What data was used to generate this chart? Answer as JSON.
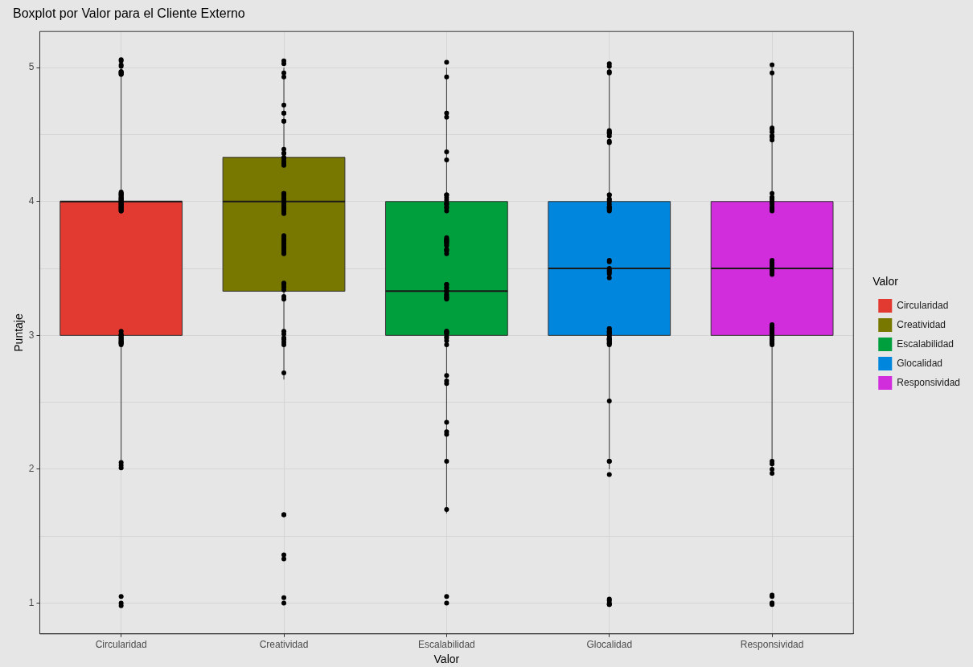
{
  "chart_data": {
    "type": "box",
    "title": "Boxplot por Valor para el Cliente Externo",
    "xlabel": "Valor",
    "ylabel": "Puntaje",
    "legend_title": "Valor",
    "legend": "right",
    "grid": true,
    "categories": [
      "Circularidad",
      "Creatividad",
      "Escalabilidad",
      "Glocalidad",
      "Responsividad"
    ],
    "series": [
      {
        "type": "box",
        "name": "Circularidad",
        "color": "#e23a30",
        "boxes": [
          {
            "low": 2,
            "q1": 3,
            "median": 4,
            "q3": 4,
            "high": 5
          },
          null,
          null,
          null,
          null
        ]
      },
      {
        "type": "box",
        "name": "Creatividad",
        "color": "#787800",
        "boxes": [
          null,
          {
            "low": 2.67,
            "q1": 3.33,
            "median": 4,
            "q3": 4.33,
            "high": 5
          },
          null,
          null,
          null
        ]
      },
      {
        "type": "box",
        "name": "Escalabilidad",
        "color": "#009f3d",
        "boxes": [
          null,
          null,
          {
            "low": 1.67,
            "q1": 3,
            "median": 3.33,
            "q3": 4,
            "high": 5
          },
          null,
          null
        ]
      },
      {
        "type": "box",
        "name": "Glocalidad",
        "color": "#0086dd",
        "boxes": [
          null,
          null,
          null,
          {
            "low": 2,
            "q1": 3,
            "median": 3.5,
            "q3": 4,
            "high": 5
          },
          null
        ]
      },
      {
        "type": "box",
        "name": "Responsividad",
        "color": "#d22ddd",
        "boxes": [
          null,
          null,
          null,
          null,
          {
            "low": 2,
            "q1": 3,
            "median": 3.5,
            "q3": 4,
            "high": 5
          }
        ]
      },
      {
        "type": "scatter",
        "color": "#000000",
        "x": [
          "Circularidad",
          "Circularidad",
          "Circularidad",
          "Circularidad",
          "Circularidad",
          "Circularidad",
          "Circularidad",
          "Circularidad",
          "Circularidad",
          "Circularidad",
          "Circularidad",
          "Circularidad",
          "Circularidad",
          "Circularidad",
          "Circularidad",
          "Circularidad",
          "Circularidad",
          "Circularidad",
          "Circularidad",
          "Circularidad",
          "Circularidad",
          "Circularidad",
          "Circularidad",
          "Circularidad",
          "Circularidad",
          "Circularidad",
          "Circularidad",
          "Circularidad",
          "Circularidad",
          "Circularidad",
          "Circularidad",
          "Circularidad",
          "Circularidad",
          "Circularidad",
          "Circularidad",
          "Circularidad",
          "Circularidad",
          "Circularidad",
          "Circularidad",
          "Circularidad",
          "Circularidad",
          "Circularidad",
          "Circularidad",
          "Circularidad",
          "Circularidad",
          "Circularidad",
          "Circularidad",
          "Circularidad",
          "Circularidad",
          "Circularidad",
          "Circularidad",
          "Circularidad",
          "Circularidad",
          "Circularidad",
          "Circularidad",
          "Circularidad",
          "Circularidad",
          "Circularidad",
          "Circularidad",
          "Creatividad",
          "Creatividad",
          "Creatividad",
          "Creatividad",
          "Creatividad",
          "Creatividad",
          "Creatividad",
          "Creatividad",
          "Creatividad",
          "Creatividad",
          "Creatividad",
          "Creatividad",
          "Creatividad",
          "Creatividad",
          "Creatividad",
          "Creatividad",
          "Creatividad",
          "Creatividad",
          "Creatividad",
          "Creatividad",
          "Creatividad",
          "Creatividad",
          "Creatividad",
          "Creatividad",
          "Creatividad",
          "Creatividad",
          "Creatividad",
          "Creatividad",
          "Creatividad",
          "Creatividad",
          "Creatividad",
          "Creatividad",
          "Creatividad",
          "Creatividad",
          "Creatividad",
          "Creatividad",
          "Creatividad",
          "Creatividad",
          "Creatividad",
          "Creatividad",
          "Creatividad",
          "Creatividad",
          "Creatividad",
          "Creatividad",
          "Creatividad",
          "Creatividad",
          "Creatividad",
          "Creatividad",
          "Creatividad",
          "Creatividad",
          "Creatividad",
          "Creatividad",
          "Creatividad",
          "Creatividad",
          "Creatividad",
          "Creatividad",
          "Creatividad",
          "Creatividad",
          "Creatividad",
          "Creatividad",
          "Creatividad",
          "Escalabilidad",
          "Escalabilidad",
          "Escalabilidad",
          "Escalabilidad",
          "Escalabilidad",
          "Escalabilidad",
          "Escalabilidad",
          "Escalabilidad",
          "Escalabilidad",
          "Escalabilidad",
          "Escalabilidad",
          "Escalabilidad",
          "Escalabilidad",
          "Escalabilidad",
          "Escalabilidad",
          "Escalabilidad",
          "Escalabilidad",
          "Escalabilidad",
          "Escalabilidad",
          "Escalabilidad",
          "Escalabilidad",
          "Escalabilidad",
          "Escalabilidad",
          "Escalabilidad",
          "Escalabilidad",
          "Escalabilidad",
          "Escalabilidad",
          "Escalabilidad",
          "Escalabilidad",
          "Escalabilidad",
          "Escalabilidad",
          "Escalabilidad",
          "Escalabilidad",
          "Escalabilidad",
          "Escalabilidad",
          "Escalabilidad",
          "Escalabilidad",
          "Escalabilidad",
          "Escalabilidad",
          "Escalabilidad",
          "Escalabilidad",
          "Escalabilidad",
          "Escalabilidad",
          "Escalabilidad",
          "Escalabilidad",
          "Escalabilidad",
          "Escalabilidad",
          "Escalabilidad",
          "Escalabilidad",
          "Escalabilidad",
          "Escalabilidad",
          "Escalabilidad",
          "Escalabilidad",
          "Escalabilidad",
          "Escalabilidad",
          "Escalabilidad",
          "Escalabilidad",
          "Escalabilidad",
          "Escalabilidad",
          "Escalabilidad",
          "Glocalidad",
          "Glocalidad",
          "Glocalidad",
          "Glocalidad",
          "Glocalidad",
          "Glocalidad",
          "Glocalidad",
          "Glocalidad",
          "Glocalidad",
          "Glocalidad",
          "Glocalidad",
          "Glocalidad",
          "Glocalidad",
          "Glocalidad",
          "Glocalidad",
          "Glocalidad",
          "Glocalidad",
          "Glocalidad",
          "Glocalidad",
          "Glocalidad",
          "Glocalidad",
          "Glocalidad",
          "Glocalidad",
          "Glocalidad",
          "Glocalidad",
          "Glocalidad",
          "Glocalidad",
          "Glocalidad",
          "Glocalidad",
          "Glocalidad",
          "Glocalidad",
          "Glocalidad",
          "Glocalidad",
          "Glocalidad",
          "Glocalidad",
          "Glocalidad",
          "Glocalidad",
          "Glocalidad",
          "Glocalidad",
          "Glocalidad",
          "Glocalidad",
          "Glocalidad",
          "Glocalidad",
          "Glocalidad",
          "Glocalidad",
          "Glocalidad",
          "Glocalidad",
          "Glocalidad",
          "Glocalidad",
          "Glocalidad",
          "Glocalidad",
          "Glocalidad",
          "Glocalidad",
          "Glocalidad",
          "Glocalidad",
          "Glocalidad",
          "Glocalidad",
          "Glocalidad",
          "Glocalidad",
          "Responsividad",
          "Responsividad",
          "Responsividad",
          "Responsividad",
          "Responsividad",
          "Responsividad",
          "Responsividad",
          "Responsividad",
          "Responsividad",
          "Responsividad",
          "Responsividad",
          "Responsividad",
          "Responsividad",
          "Responsividad",
          "Responsividad",
          "Responsividad",
          "Responsividad",
          "Responsividad",
          "Responsividad",
          "Responsividad",
          "Responsividad",
          "Responsividad",
          "Responsividad",
          "Responsividad",
          "Responsividad",
          "Responsividad",
          "Responsividad",
          "Responsividad",
          "Responsividad",
          "Responsividad",
          "Responsividad",
          "Responsividad",
          "Responsividad",
          "Responsividad",
          "Responsividad",
          "Responsividad",
          "Responsividad",
          "Responsividad",
          "Responsividad",
          "Responsividad",
          "Responsividad",
          "Responsividad",
          "Responsividad",
          "Responsividad",
          "Responsividad",
          "Responsividad",
          "Responsividad",
          "Responsividad",
          "Responsividad",
          "Responsividad",
          "Responsividad",
          "Responsividad",
          "Responsividad",
          "Responsividad",
          "Responsividad"
        ],
        "values": [
          4.95,
          4.96,
          5.02,
          5.05,
          5.06,
          5.01,
          4.97,
          4.97,
          4.95,
          4.96,
          4.05,
          4.06,
          4.03,
          4.01,
          4.02,
          4.03,
          3.99,
          3.97,
          3.96,
          3.95,
          3.93,
          3.97,
          3.96,
          4.01,
          4.04,
          4.05,
          4.06,
          4.0,
          3.98,
          3.94,
          3.93,
          3.98,
          3.95,
          4.07,
          3.99,
          4.0,
          4.02,
          3.94,
          2.99,
          3.0,
          3.01,
          2.98,
          3.03,
          3.0,
          2.98,
          2.96,
          2.94,
          2.94,
          2.96,
          2.95,
          2.93,
          2.95,
          2.97,
          2.01,
          2.03,
          2.05,
          1.05,
          1.0,
          0.98,
          5.05,
          5.03,
          4.96,
          4.93,
          4.72,
          4.66,
          4.66,
          4.6,
          4.6,
          4.39,
          4.36,
          4.36,
          4.33,
          4.32,
          4.28,
          4.3,
          4.28,
          4.27,
          4.06,
          4.04,
          4.06,
          4.05,
          4.02,
          4.0,
          4.02,
          3.985,
          3.94,
          3.955,
          3.925,
          3.97,
          3.91,
          3.73,
          3.745,
          3.715,
          3.7,
          3.685,
          3.625,
          3.655,
          3.64,
          3.61,
          3.67,
          3.39,
          3.38,
          3.36,
          3.34,
          3.29,
          3.27,
          3.03,
          3.01,
          2.98,
          2.97,
          2.95,
          2.98,
          2.93,
          2.72,
          1.66,
          1.66,
          1.33,
          1.36,
          1.0,
          1.04,
          5.04,
          4.93,
          4.66,
          4.63,
          4.37,
          4.31,
          4.05,
          4.05,
          4.03,
          4.01,
          3.98,
          3.95,
          3.96,
          3.98,
          3.99,
          3.93,
          3.67,
          3.68,
          3.7,
          3.71,
          3.72,
          3.73,
          3.71,
          3.7,
          3.69,
          3.64,
          3.63,
          3.61,
          3.64,
          3.38,
          3.38,
          3.36,
          3.33,
          3.33,
          3.35,
          3.3,
          3.28,
          3.28,
          3.31,
          3.27,
          3.29,
          3.03,
          3.02,
          3.01,
          2.98,
          3.03,
          3.02,
          2.99,
          2.96,
          2.93,
          2.7,
          2.64,
          2.66,
          2.35,
          2.28,
          2.26,
          2.06,
          1.7,
          1.05,
          1.0,
          5.03,
          5.01,
          4.97,
          4.96,
          4.51,
          4.51,
          4.53,
          4.52,
          4.49,
          4.45,
          4.44,
          4.05,
          4.02,
          4.01,
          4.05,
          4.0,
          3.98,
          3.94,
          3.96,
          3.96,
          3.95,
          3.93,
          3.95,
          3.56,
          3.55,
          3.48,
          3.43,
          3.46,
          3.49,
          3.5,
          3.47,
          3.03,
          3.0,
          3.0,
          3.02,
          3.02,
          3.03,
          3.05,
          3.05,
          3.01,
          2.97,
          2.94,
          2.98,
          2.93,
          2.95,
          2.96,
          2.94,
          2.98,
          2.96,
          2.97,
          2.51,
          2.06,
          2.06,
          1.96,
          0.99,
          1.03,
          1.02,
          1.0,
          0.99,
          5.02,
          4.96,
          4.49,
          4.46,
          4.55,
          4.52,
          4.48,
          4.54,
          4.49,
          4.01,
          3.98,
          3.96,
          3.95,
          3.93,
          3.94,
          3.99,
          4.0,
          3.94,
          4.03,
          4.02,
          4.03,
          4.06,
          3.515,
          3.53,
          3.5,
          3.545,
          3.455,
          3.56,
          3.485,
          3.47,
          3.06,
          3.05,
          3.02,
          3.01,
          3.03,
          3.07,
          3.0,
          2.99,
          2.98,
          2.96,
          3.04,
          3.08,
          2.93,
          2.97,
          2.94,
          2.95,
          2.06,
          2.04,
          2.0,
          1.97,
          1.0,
          0.99,
          1.0,
          1.06,
          1.05
        ]
      }
    ],
    "ylim": [
      0.77,
      5.27
    ],
    "yticks": [
      1,
      {
        "value": 1.5,
        "label": null
      },
      2,
      {
        "value": 2.5,
        "label": null
      },
      3,
      {
        "value": 3.5,
        "label": null
      },
      4,
      {
        "value": 4.5,
        "label": null
      },
      5
    ]
  }
}
